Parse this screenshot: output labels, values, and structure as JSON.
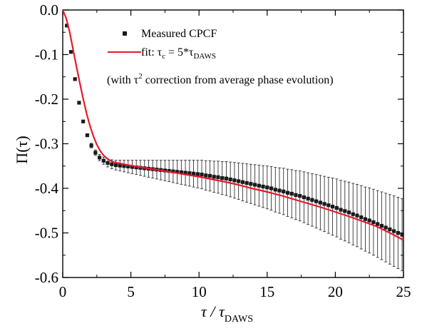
{
  "chart_data": {
    "type": "scatter",
    "xlabel_main": "τ / τ",
    "xlabel_sub": "DAWS",
    "ylabel": "Π(τ)",
    "xlim": [
      0,
      25
    ],
    "ylim": [
      -0.6,
      0.0
    ],
    "xticks": [
      0,
      5,
      10,
      15,
      20,
      25
    ],
    "yticks": [
      0.0,
      -0.1,
      -0.2,
      -0.3,
      -0.4,
      -0.5,
      -0.6
    ],
    "xtick_labels": [
      "0",
      "5",
      "10",
      "15",
      "20",
      "25"
    ],
    "ytick_labels": [
      "0.0",
      "-0.1",
      "-0.2",
      "-0.3",
      "-0.4",
      "-0.5",
      "-0.6"
    ],
    "legend": {
      "placement": "top-right",
      "measured_label": "Measured CPCF",
      "fit_prefix": "fit: τ",
      "fit_sub1": "c",
      "fit_mid": " = 5*τ",
      "fit_sub2": "DAWS",
      "note_prefix": "(with τ",
      "note_sup": "2",
      "note_suffix": " correction from average phase evolution)"
    },
    "colors": {
      "measured": "#1a1a1a",
      "fit": "#e8192c",
      "axis": "#000000"
    },
    "series": [
      {
        "name": "Measured CPCF",
        "x": [
          0.3,
          0.6,
          0.9,
          1.2,
          1.5,
          1.8,
          2.1,
          2.4,
          2.7,
          3.0,
          3.3,
          3.6,
          3.9,
          4.2,
          4.5,
          4.8,
          5.1,
          5.4,
          5.7,
          6.0,
          6.3,
          6.6,
          6.9,
          7.2,
          7.5,
          7.8,
          8.1,
          8.4,
          8.7,
          9.0,
          9.3,
          9.6,
          9.9,
          10.2,
          10.5,
          10.8,
          11.1,
          11.4,
          11.7,
          12.0,
          12.3,
          12.6,
          12.9,
          13.2,
          13.5,
          13.8,
          14.1,
          14.4,
          14.7,
          15.0,
          15.3,
          15.6,
          15.9,
          16.2,
          16.5,
          16.8,
          17.1,
          17.4,
          17.7,
          18.0,
          18.3,
          18.6,
          18.9,
          19.2,
          19.5,
          19.8,
          20.1,
          20.4,
          20.7,
          21.0,
          21.3,
          21.6,
          21.9,
          22.2,
          22.5,
          22.8,
          23.1,
          23.4,
          23.7,
          24.0,
          24.3,
          24.6,
          24.9
        ],
        "y": [
          -0.035,
          -0.094,
          -0.155,
          -0.208,
          -0.25,
          -0.281,
          -0.304,
          -0.32,
          -0.331,
          -0.338,
          -0.343,
          -0.346,
          -0.348,
          -0.349,
          -0.35,
          -0.351,
          -0.352,
          -0.353,
          -0.354,
          -0.355,
          -0.356,
          -0.357,
          -0.358,
          -0.359,
          -0.36,
          -0.361,
          -0.362,
          -0.363,
          -0.364,
          -0.365,
          -0.366,
          -0.367,
          -0.368,
          -0.369,
          -0.371,
          -0.372,
          -0.374,
          -0.375,
          -0.377,
          -0.378,
          -0.38,
          -0.382,
          -0.384,
          -0.386,
          -0.388,
          -0.39,
          -0.392,
          -0.394,
          -0.396,
          -0.398,
          -0.4,
          -0.403,
          -0.405,
          -0.407,
          -0.41,
          -0.412,
          -0.415,
          -0.417,
          -0.42,
          -0.423,
          -0.426,
          -0.429,
          -0.432,
          -0.435,
          -0.438,
          -0.441,
          -0.444,
          -0.448,
          -0.451,
          -0.454,
          -0.458,
          -0.461,
          -0.465,
          -0.469,
          -0.472,
          -0.476,
          -0.48,
          -0.484,
          -0.488,
          -0.492,
          -0.496,
          -0.5,
          -0.504
        ],
        "yerr": [
          0.002,
          0.002,
          0.003,
          0.003,
          0.004,
          0.004,
          0.005,
          0.006,
          0.007,
          0.008,
          0.009,
          0.01,
          0.011,
          0.012,
          0.013,
          0.014,
          0.015,
          0.016,
          0.017,
          0.018,
          0.019,
          0.02,
          0.021,
          0.022,
          0.023,
          0.024,
          0.025,
          0.026,
          0.027,
          0.028,
          0.029,
          0.03,
          0.031,
          0.032,
          0.033,
          0.034,
          0.035,
          0.036,
          0.037,
          0.038,
          0.039,
          0.04,
          0.041,
          0.042,
          0.043,
          0.044,
          0.045,
          0.046,
          0.047,
          0.048,
          0.049,
          0.05,
          0.051,
          0.052,
          0.053,
          0.054,
          0.055,
          0.056,
          0.057,
          0.058,
          0.059,
          0.06,
          0.061,
          0.062,
          0.063,
          0.064,
          0.065,
          0.066,
          0.067,
          0.068,
          0.069,
          0.07,
          0.071,
          0.072,
          0.073,
          0.074,
          0.075,
          0.076,
          0.077,
          0.078,
          0.079,
          0.08,
          0.081
        ]
      },
      {
        "name": "fit: τc = 5*τDAWS",
        "x": [
          0,
          0.25,
          0.5,
          0.75,
          1.0,
          1.25,
          1.5,
          1.75,
          2.0,
          2.25,
          2.5,
          2.75,
          3.0,
          3.25,
          3.5,
          3.75,
          4.0,
          4.5,
          5.0,
          6.0,
          7.0,
          8.0,
          9.0,
          10.0,
          11.0,
          12.0,
          13.0,
          14.0,
          15.0,
          16.0,
          17.0,
          18.0,
          19.0,
          20.0,
          21.0,
          22.0,
          23.0,
          24.0,
          25.0
        ],
        "y": [
          0.0,
          -0.018,
          -0.048,
          -0.087,
          -0.126,
          -0.163,
          -0.199,
          -0.232,
          -0.26,
          -0.283,
          -0.302,
          -0.316,
          -0.326,
          -0.333,
          -0.338,
          -0.341,
          -0.343,
          -0.346,
          -0.349,
          -0.354,
          -0.359,
          -0.364,
          -0.369,
          -0.374,
          -0.38,
          -0.386,
          -0.393,
          -0.401,
          -0.408,
          -0.416,
          -0.425,
          -0.434,
          -0.443,
          -0.453,
          -0.463,
          -0.474,
          -0.485,
          -0.5,
          -0.516
        ]
      }
    ]
  }
}
